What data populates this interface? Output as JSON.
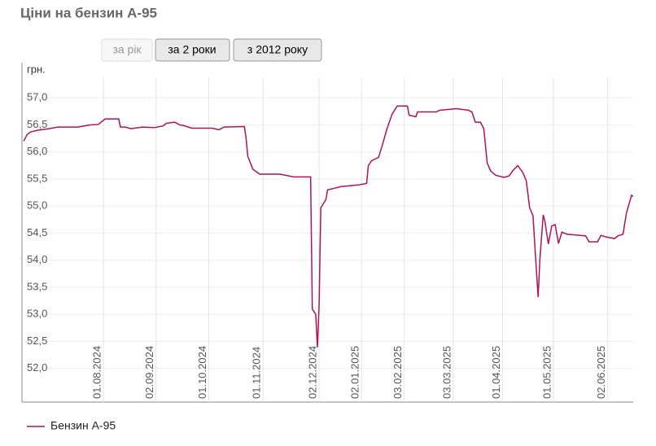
{
  "chart_data": {
    "type": "line",
    "title": "Ціни на бензин А-95",
    "y_label": "грн.",
    "buttons": [
      "за рік",
      "за 2 роки",
      "з 2012 року"
    ],
    "xlim": [
      0,
      360
    ],
    "ylim": [
      51.38,
      57.65
    ],
    "xticks": [
      {
        "value": 48,
        "label": "01.08.2024"
      },
      {
        "value": 79,
        "label": "02.09.2024"
      },
      {
        "value": 110,
        "label": "01.10.2024"
      },
      {
        "value": 142,
        "label": "01.11.2024"
      },
      {
        "value": 175,
        "label": "02.12.2024"
      },
      {
        "value": 200,
        "label": "02.01.2025"
      },
      {
        "value": 225,
        "label": "03.02.2025"
      },
      {
        "value": 254,
        "label": "03.03.2025"
      },
      {
        "value": 283,
        "label": "01.04.2025"
      },
      {
        "value": 313,
        "label": "01.05.2025"
      },
      {
        "value": 345,
        "label": "02.06.2025"
      }
    ],
    "yticks": [
      {
        "value": 52,
        "label": "52,0"
      },
      {
        "value": 52.5,
        "label": "52,5"
      },
      {
        "value": 53,
        "label": "53,0"
      },
      {
        "value": 53.5,
        "label": "53,5"
      },
      {
        "value": 54,
        "label": "54,0"
      },
      {
        "value": 54.5,
        "label": "54,5"
      },
      {
        "value": 55,
        "label": "55,0"
      },
      {
        "value": 55.5,
        "label": "55,5"
      },
      {
        "value": 56,
        "label": "56,0"
      },
      {
        "value": 56.5,
        "label": "56,5"
      },
      {
        "value": 57,
        "label": "57,0"
      }
    ],
    "grid": true,
    "legend": "bottom-left",
    "x": [
      1,
      3,
      5,
      9,
      16,
      21,
      33,
      40,
      45,
      49,
      57,
      58,
      61,
      64,
      71,
      78,
      83,
      85,
      90,
      93,
      95,
      100,
      112,
      116,
      119,
      131,
      132,
      133,
      136,
      140,
      152,
      160,
      170,
      171,
      173,
      174,
      175,
      176,
      179,
      180,
      184,
      188,
      198,
      203,
      204,
      206,
      210,
      212,
      215,
      218,
      221,
      227,
      228,
      232,
      233,
      244,
      246,
      256,
      263,
      265,
      267,
      270,
      272,
      274,
      276,
      279,
      284,
      287,
      289,
      292,
      295,
      297,
      299,
      301,
      302,
      304,
      305,
      307,
      308,
      310,
      312,
      314,
      316,
      318,
      321,
      325,
      332,
      334,
      339,
      341,
      344,
      349,
      351,
      354,
      356,
      359,
      360
    ],
    "series": [
      {
        "name": "Бензин А-95",
        "color": "#b0125b",
        "values": [
          56.2,
          56.32,
          56.37,
          56.4,
          56.43,
          56.46,
          56.46,
          56.5,
          56.51,
          56.61,
          56.61,
          56.46,
          56.46,
          56.43,
          56.46,
          56.45,
          56.48,
          56.53,
          56.55,
          56.5,
          56.49,
          56.44,
          56.44,
          56.41,
          56.46,
          56.47,
          56.25,
          55.92,
          55.68,
          55.59,
          55.59,
          55.54,
          55.54,
          53.1,
          53.0,
          52.39,
          53.17,
          54.97,
          55.12,
          55.3,
          55.33,
          55.36,
          55.39,
          55.42,
          55.75,
          55.84,
          55.9,
          56.1,
          56.43,
          56.7,
          56.85,
          56.85,
          56.68,
          56.65,
          56.74,
          56.74,
          56.77,
          56.8,
          56.77,
          56.74,
          56.55,
          56.55,
          56.43,
          55.8,
          55.65,
          55.57,
          55.53,
          55.56,
          55.65,
          55.75,
          55.62,
          55.47,
          54.97,
          54.82,
          54.3,
          53.32,
          54.0,
          54.84,
          54.72,
          54.3,
          54.63,
          54.66,
          54.31,
          54.52,
          54.48,
          54.47,
          54.45,
          54.34,
          54.34,
          54.46,
          54.43,
          54.4,
          54.45,
          54.48,
          54.87,
          55.2,
          55.18
        ]
      }
    ]
  }
}
